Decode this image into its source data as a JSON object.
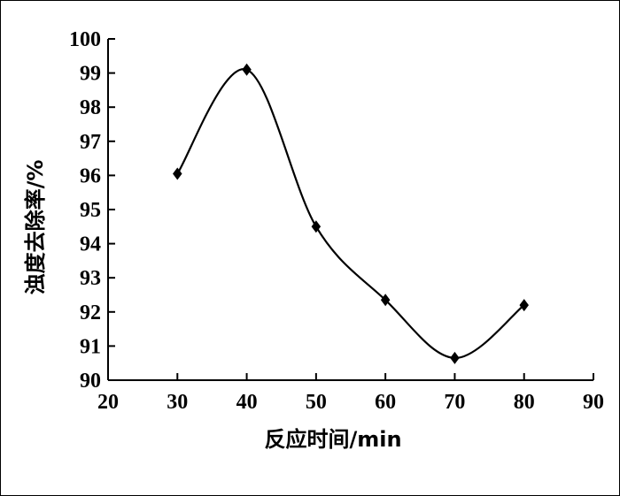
{
  "chart_data": {
    "type": "line",
    "x": [
      30,
      40,
      50,
      60,
      70,
      80
    ],
    "series": [
      {
        "values": [
          96.05,
          99.1,
          94.5,
          92.35,
          90.65,
          92.2
        ]
      }
    ],
    "xlabel": "反应时间/min",
    "ylabel": "浊度去除率/%",
    "xlim": [
      20,
      90
    ],
    "ylim": [
      90,
      100
    ],
    "xticks": [
      "20",
      "30",
      "40",
      "50",
      "60",
      "70",
      "80",
      "90"
    ],
    "yticks": [
      "90",
      "91",
      "92",
      "93",
      "94",
      "95",
      "96",
      "97",
      "98",
      "99",
      "100"
    ],
    "grid": false,
    "marker": "diamond",
    "smooth": true
  }
}
